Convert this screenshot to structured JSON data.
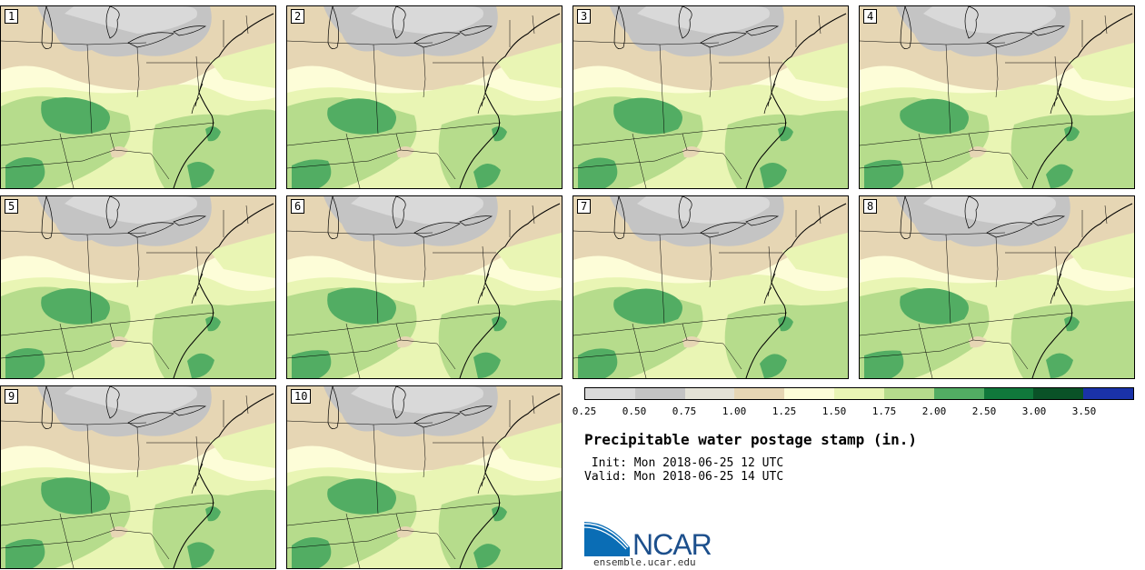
{
  "panels": [
    {
      "label": "1"
    },
    {
      "label": "2"
    },
    {
      "label": "3"
    },
    {
      "label": "4"
    },
    {
      "label": "5"
    },
    {
      "label": "6"
    },
    {
      "label": "7"
    },
    {
      "label": "8"
    },
    {
      "label": "9"
    },
    {
      "label": "10"
    }
  ],
  "legend": {
    "colors": [
      "#d9d9d9",
      "#c4c4c4",
      "#e4e2d6",
      "#e6d6b4",
      "#fdfdd8",
      "#e9f5b4",
      "#b6dc8c",
      "#52ad63",
      "#10783b",
      "#0a5227",
      "#1a32a8"
    ],
    "ticks": [
      "0.25",
      "0.50",
      "0.75",
      "1.00",
      "1.25",
      "1.50",
      "1.75",
      "2.00",
      "2.50",
      "3.00",
      "3.50"
    ]
  },
  "title": "Precipitable water postage stamp (in.)",
  "init_text": " Init: Mon 2018-06-25 12 UTC",
  "valid_text": "Valid: Mon 2018-06-25 14 UTC",
  "logo": {
    "name": "NCAR",
    "url": "ensemble.ucar.edu"
  }
}
